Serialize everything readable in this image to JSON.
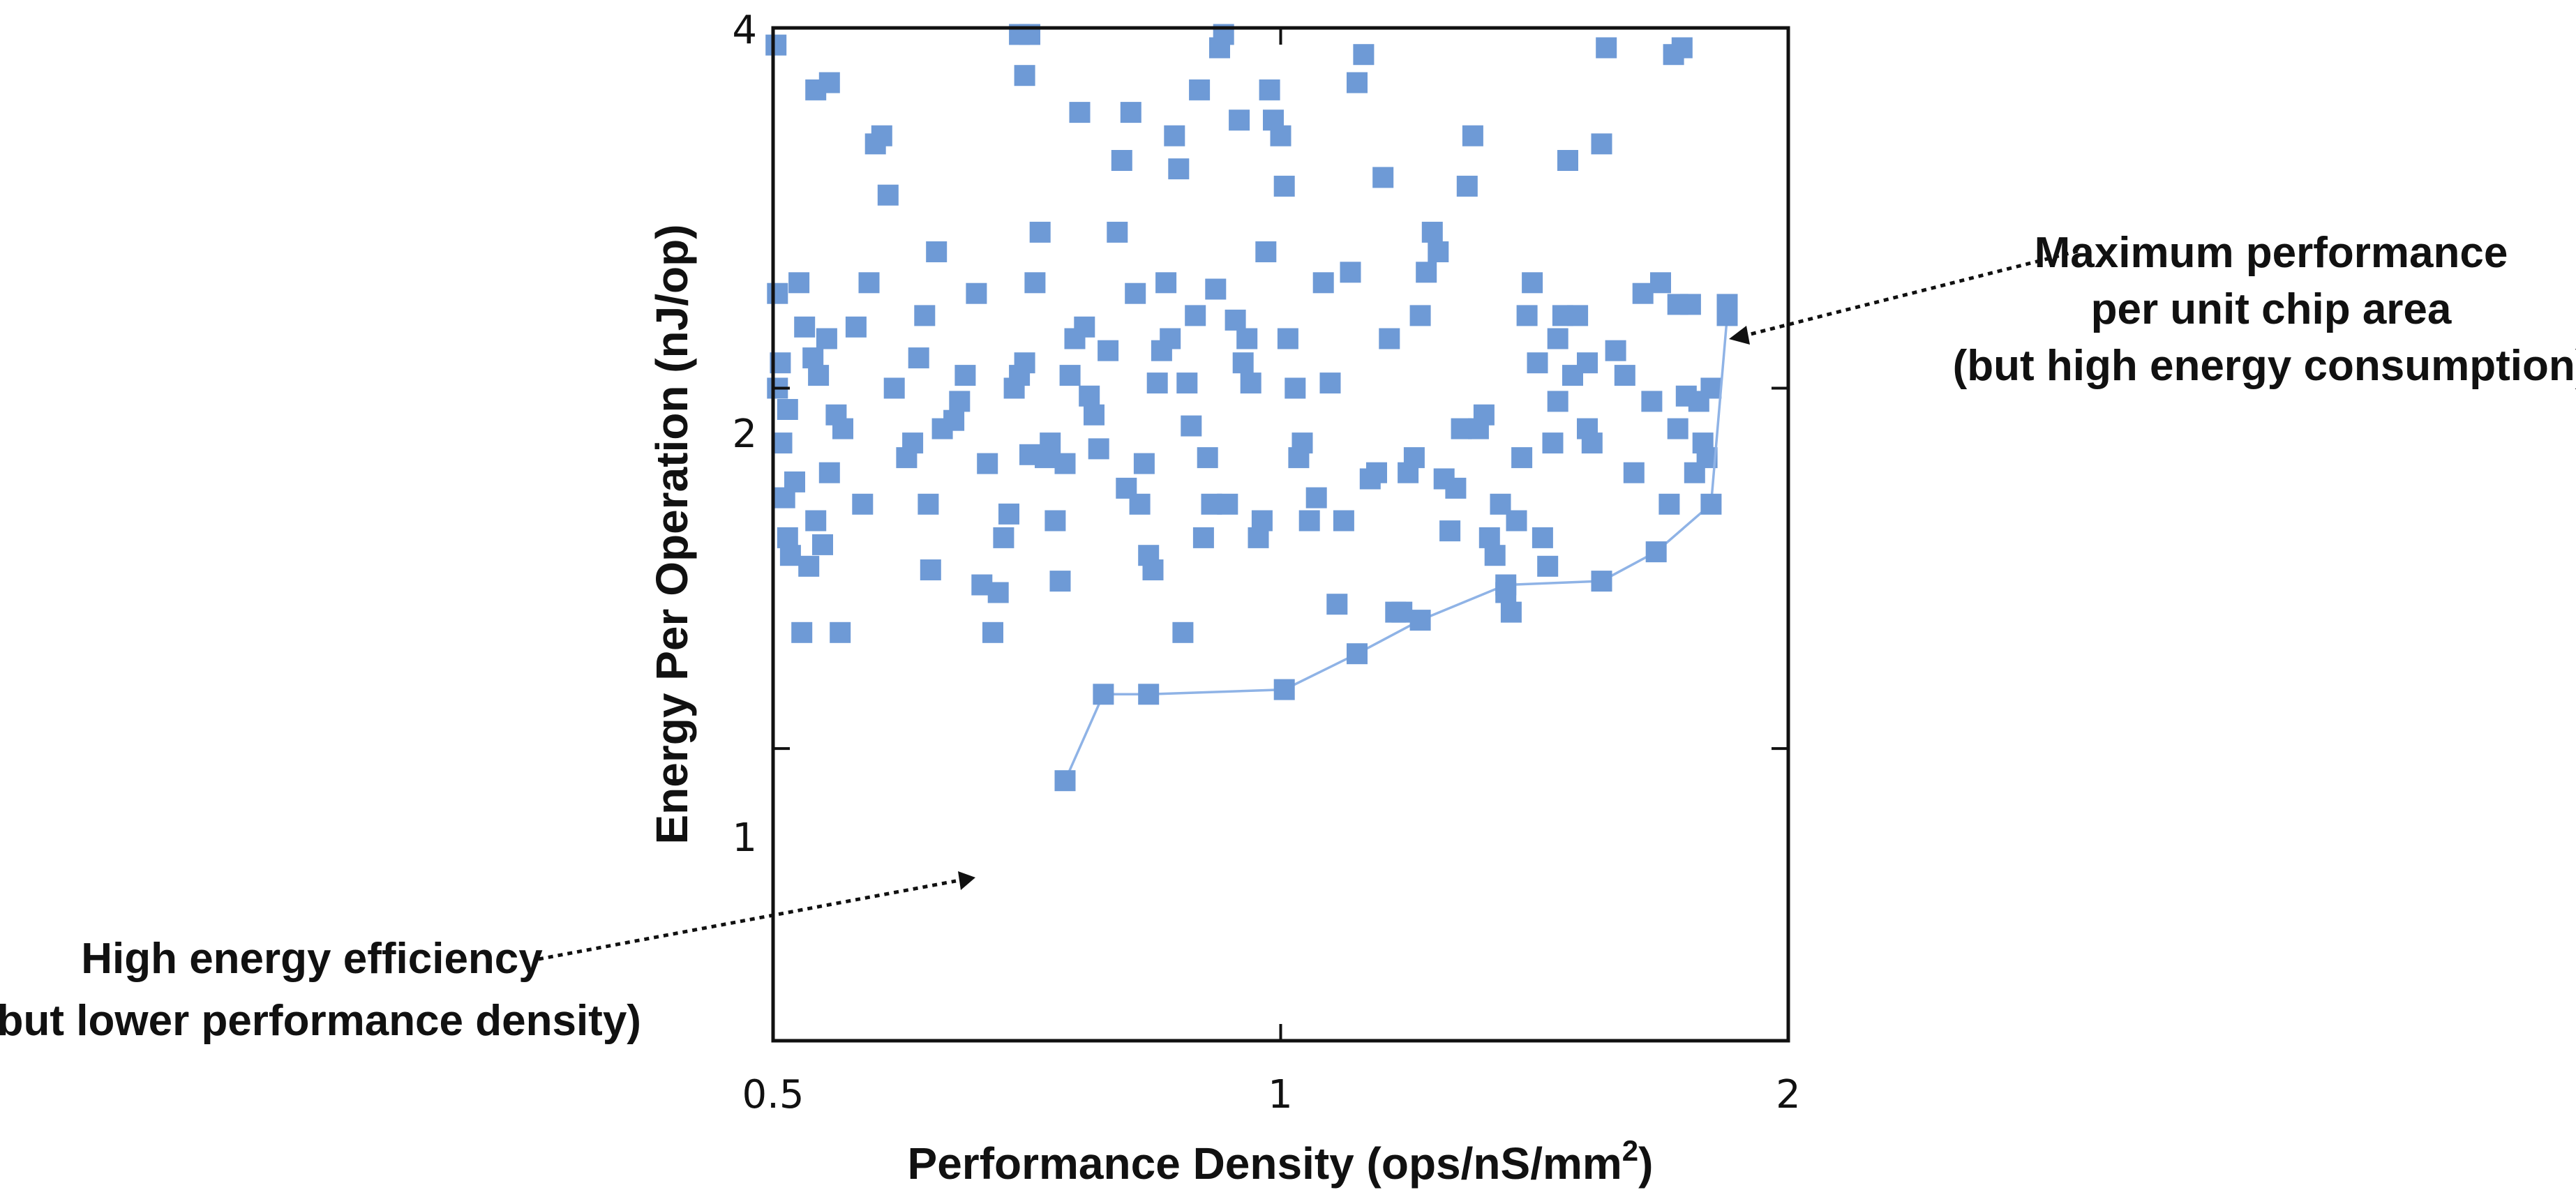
{
  "chart_data": {
    "type": "scatter",
    "title": "",
    "xlabel": "Performance Density (ops/nS/mm",
    "xlabel_sup": "2",
    "xlabel_close": ")",
    "ylabel": "Energy Per Operation (nJ/op)",
    "xscale": "log",
    "yscale": "log",
    "xlim": [
      0.5,
      2
    ],
    "ylim": [
      0.57,
      4
    ],
    "xticks": [
      0.5,
      1,
      2
    ],
    "xtick_labels": [
      "0.5",
      "1",
      "2"
    ],
    "yticks": [
      1,
      2,
      4
    ],
    "ytick_labels": [
      "1",
      "2",
      "4"
    ],
    "grid": false,
    "color": "#6e9ad6",
    "points": [
      [
        0.502,
        3.87
      ],
      [
        0.503,
        2.4
      ],
      [
        0.505,
        2.1
      ],
      [
        0.503,
        2.0
      ],
      [
        0.506,
        1.8
      ],
      [
        0.51,
        1.92
      ],
      [
        0.508,
        1.62
      ],
      [
        0.512,
        1.45
      ],
      [
        0.51,
        1.5
      ],
      [
        0.515,
        1.67
      ],
      [
        0.52,
        1.25
      ],
      [
        0.525,
        1.42
      ],
      [
        0.53,
        1.55
      ],
      [
        0.535,
        1.48
      ],
      [
        0.518,
        2.45
      ],
      [
        0.522,
        2.25
      ],
      [
        0.528,
        2.12
      ],
      [
        0.532,
        2.05
      ],
      [
        0.538,
        2.2
      ],
      [
        0.54,
        1.7
      ],
      [
        0.545,
        1.9
      ],
      [
        0.55,
        1.85
      ],
      [
        0.548,
        1.25
      ],
      [
        0.53,
        3.55
      ],
      [
        0.54,
        3.6
      ],
      [
        0.56,
        2.25
      ],
      [
        0.565,
        1.6
      ],
      [
        0.57,
        2.45
      ],
      [
        0.575,
        3.2
      ],
      [
        0.58,
        3.25
      ],
      [
        0.585,
        2.9
      ],
      [
        0.59,
        2.0
      ],
      [
        0.6,
        1.75
      ],
      [
        0.605,
        1.8
      ],
      [
        0.61,
        2.12
      ],
      [
        0.615,
        2.3
      ],
      [
        0.62,
        1.41
      ],
      [
        0.618,
        1.6
      ],
      [
        0.625,
        2.6
      ],
      [
        0.63,
        1.85
      ],
      [
        0.64,
        1.88
      ],
      [
        0.645,
        1.95
      ],
      [
        0.65,
        2.05
      ],
      [
        0.66,
        2.4
      ],
      [
        0.665,
        1.37
      ],
      [
        0.67,
        1.73
      ],
      [
        0.675,
        1.25
      ],
      [
        0.68,
        1.35
      ],
      [
        0.685,
        1.5
      ],
      [
        0.69,
        1.57
      ],
      [
        0.695,
        2.0
      ],
      [
        0.7,
        2.05
      ],
      [
        0.705,
        2.1
      ],
      [
        0.71,
        1.76
      ],
      [
        0.705,
        3.65
      ],
      [
        0.7,
        3.95
      ],
      [
        0.71,
        3.95
      ],
      [
        0.715,
        2.45
      ],
      [
        0.72,
        2.7
      ],
      [
        0.725,
        1.75
      ],
      [
        0.73,
        1.8
      ],
      [
        0.735,
        1.55
      ],
      [
        0.74,
        1.38
      ],
      [
        0.745,
        1.73
      ],
      [
        0.75,
        2.05
      ],
      [
        0.755,
        2.2
      ],
      [
        0.76,
        3.4
      ],
      [
        0.765,
        2.25
      ],
      [
        0.77,
        1.97
      ],
      [
        0.775,
        1.9
      ],
      [
        0.78,
        1.78
      ],
      [
        0.79,
        2.15
      ],
      [
        0.8,
        2.7
      ],
      [
        0.805,
        3.1
      ],
      [
        0.81,
        1.65
      ],
      [
        0.815,
        3.4
      ],
      [
        0.82,
        2.4
      ],
      [
        0.825,
        1.6
      ],
      [
        0.83,
        1.73
      ],
      [
        0.835,
        1.45
      ],
      [
        0.84,
        1.41
      ],
      [
        0.845,
        2.02
      ],
      [
        0.85,
        2.15
      ],
      [
        0.855,
        2.45
      ],
      [
        0.86,
        2.2
      ],
      [
        0.865,
        3.25
      ],
      [
        0.87,
        3.05
      ],
      [
        0.875,
        1.25
      ],
      [
        0.88,
        2.02
      ],
      [
        0.885,
        1.86
      ],
      [
        0.89,
        2.3
      ],
      [
        0.895,
        3.55
      ],
      [
        0.9,
        1.5
      ],
      [
        0.905,
        1.75
      ],
      [
        0.91,
        1.6
      ],
      [
        0.915,
        2.42
      ],
      [
        0.92,
        3.85
      ],
      [
        0.925,
        3.95
      ],
      [
        0.93,
        1.6
      ],
      [
        0.94,
        2.28
      ],
      [
        0.945,
        3.35
      ],
      [
        0.95,
        2.1
      ],
      [
        0.955,
        2.2
      ],
      [
        0.96,
        2.02
      ],
      [
        0.97,
        1.5
      ],
      [
        0.975,
        1.55
      ],
      [
        0.98,
        2.6
      ],
      [
        0.985,
        3.55
      ],
      [
        0.99,
        3.35
      ],
      [
        1.0,
        3.25
      ],
      [
        1.005,
        2.95
      ],
      [
        1.01,
        2.2
      ],
      [
        1.02,
        2.0
      ],
      [
        1.025,
        1.75
      ],
      [
        1.03,
        1.8
      ],
      [
        1.04,
        1.55
      ],
      [
        1.05,
        1.62
      ],
      [
        1.06,
        2.45
      ],
      [
        1.07,
        2.02
      ],
      [
        1.08,
        1.32
      ],
      [
        1.09,
        1.55
      ],
      [
        1.1,
        2.5
      ],
      [
        1.11,
        3.6
      ],
      [
        1.12,
        3.8
      ],
      [
        1.13,
        1.68
      ],
      [
        1.14,
        1.7
      ],
      [
        1.15,
        3.0
      ],
      [
        1.16,
        2.2
      ],
      [
        1.17,
        1.3
      ],
      [
        1.18,
        1.3
      ],
      [
        1.19,
        1.7
      ],
      [
        1.2,
        1.75
      ],
      [
        1.21,
        2.3
      ],
      [
        1.22,
        2.5
      ],
      [
        1.23,
        2.7
      ],
      [
        1.24,
        2.6
      ],
      [
        1.25,
        1.68
      ],
      [
        1.26,
        1.52
      ],
      [
        1.27,
        1.65
      ],
      [
        1.28,
        1.85
      ],
      [
        1.29,
        2.95
      ],
      [
        1.3,
        3.25
      ],
      [
        1.31,
        1.85
      ],
      [
        1.32,
        1.9
      ],
      [
        1.33,
        1.5
      ],
      [
        1.34,
        1.45
      ],
      [
        1.35,
        1.6
      ],
      [
        1.36,
        1.35
      ],
      [
        1.37,
        1.3
      ],
      [
        1.38,
        1.55
      ],
      [
        1.39,
        1.75
      ],
      [
        1.4,
        2.3
      ],
      [
        1.41,
        2.45
      ],
      [
        1.42,
        2.1
      ],
      [
        1.43,
        1.5
      ],
      [
        1.44,
        1.42
      ],
      [
        1.45,
        1.8
      ],
      [
        1.46,
        1.95
      ],
      [
        1.47,
        2.3
      ],
      [
        1.48,
        3.1
      ],
      [
        1.49,
        2.05
      ],
      [
        1.5,
        2.3
      ],
      [
        1.52,
        1.85
      ],
      [
        1.53,
        1.8
      ],
      [
        1.55,
        3.2
      ],
      [
        1.56,
        3.85
      ],
      [
        1.58,
        2.15
      ],
      [
        1.6,
        2.05
      ],
      [
        1.62,
        1.7
      ],
      [
        1.64,
        2.4
      ],
      [
        1.66,
        1.95
      ],
      [
        1.68,
        2.45
      ],
      [
        1.7,
        1.6
      ],
      [
        1.72,
        1.85
      ],
      [
        1.73,
        3.85
      ],
      [
        1.75,
        2.35
      ],
      [
        1.76,
        1.7
      ],
      [
        1.77,
        1.95
      ],
      [
        1.78,
        1.8
      ],
      [
        1.79,
        1.75
      ],
      [
        1.8,
        2.0
      ],
      [
        1.72,
        2.35
      ],
      [
        1.74,
        1.97
      ],
      [
        1.71,
        3.8
      ],
      [
        1.52,
        2.1
      ],
      [
        1.46,
        2.2
      ]
    ],
    "frontier": [
      [
        0.745,
        0.94
      ],
      [
        0.785,
        1.11
      ],
      [
        0.835,
        1.11
      ],
      [
        1.005,
        1.12
      ],
      [
        1.11,
        1.2
      ],
      [
        1.21,
        1.28
      ],
      [
        1.36,
        1.37
      ],
      [
        1.55,
        1.38
      ],
      [
        1.67,
        1.46
      ],
      [
        1.8,
        1.6
      ],
      [
        1.84,
        2.3
      ],
      [
        1.84,
        2.35
      ]
    ],
    "annotations": [
      {
        "lines": [
          "Maximum performance",
          "per unit chip area",
          "(but high energy consumption)"
        ]
      },
      {
        "lines": [
          "High energy efficiency",
          "(but lower performance density)"
        ]
      }
    ]
  }
}
